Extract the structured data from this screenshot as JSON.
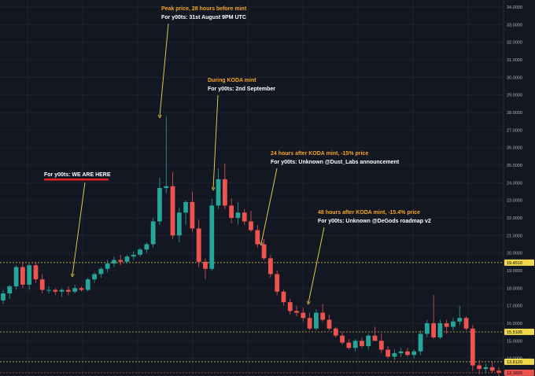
{
  "chart_data": {
    "type": "candlestick",
    "title": "",
    "xlabel": "",
    "ylabel": "",
    "ylim": [
      13.0,
      34.4
    ],
    "grid": true,
    "y_ticks": [
      "34.0000",
      "33.0000",
      "32.0000",
      "31.0000",
      "30.0000",
      "29.0000",
      "28.0000",
      "27.0000",
      "26.0000",
      "25.0000",
      "24.0000",
      "23.0000",
      "22.0000",
      "21.0000",
      "20.0000",
      "19.0000",
      "18.0000",
      "17.0000",
      "16.0000",
      "15.0000",
      "14.0000",
      "13.0000"
    ],
    "price_lines": [
      {
        "label": "19.4510",
        "value": 19.451,
        "color": "#f0d94b"
      },
      {
        "label": "15.5105",
        "value": 15.5105,
        "color": "#f0d94b"
      },
      {
        "label": "13.8120",
        "value": 13.812,
        "color": "#f0d94b"
      },
      {
        "label": "13.1820",
        "value": 13.182,
        "color": "#ef5350"
      }
    ],
    "up_color": "#26a69a",
    "down_color": "#ef5350",
    "candles": [
      {
        "o": 17.3,
        "h": 17.9,
        "l": 17.1,
        "c": 17.7
      },
      {
        "o": 17.7,
        "h": 18.2,
        "l": 17.4,
        "c": 18.1
      },
      {
        "o": 18.1,
        "h": 19.3,
        "l": 17.9,
        "c": 19.2
      },
      {
        "o": 19.2,
        "h": 19.5,
        "l": 18.0,
        "c": 18.2
      },
      {
        "o": 18.2,
        "h": 19.4,
        "l": 17.9,
        "c": 19.3
      },
      {
        "o": 19.3,
        "h": 19.5,
        "l": 18.3,
        "c": 18.5
      },
      {
        "o": 18.5,
        "h": 18.8,
        "l": 17.7,
        "c": 17.9
      },
      {
        "o": 17.9,
        "h": 18.1,
        "l": 17.7,
        "c": 17.9
      },
      {
        "o": 17.9,
        "h": 18.0,
        "l": 17.6,
        "c": 17.8
      },
      {
        "o": 17.8,
        "h": 18.0,
        "l": 17.5,
        "c": 17.9
      },
      {
        "o": 17.9,
        "h": 18.1,
        "l": 17.6,
        "c": 17.8
      },
      {
        "o": 17.8,
        "h": 18.2,
        "l": 17.7,
        "c": 18.0
      },
      {
        "o": 18.0,
        "h": 18.1,
        "l": 17.8,
        "c": 17.9
      },
      {
        "o": 17.9,
        "h": 18.6,
        "l": 17.8,
        "c": 18.5
      },
      {
        "o": 18.5,
        "h": 18.9,
        "l": 18.3,
        "c": 18.8
      },
      {
        "o": 18.8,
        "h": 19.2,
        "l": 18.6,
        "c": 19.1
      },
      {
        "o": 19.1,
        "h": 19.6,
        "l": 18.9,
        "c": 19.4
      },
      {
        "o": 19.4,
        "h": 19.8,
        "l": 19.2,
        "c": 19.6
      },
      {
        "o": 19.6,
        "h": 19.9,
        "l": 19.3,
        "c": 19.5
      },
      {
        "o": 19.5,
        "h": 19.9,
        "l": 19.4,
        "c": 19.8
      },
      {
        "o": 19.8,
        "h": 20.1,
        "l": 19.6,
        "c": 19.9
      },
      {
        "o": 19.9,
        "h": 20.3,
        "l": 19.8,
        "c": 20.2
      },
      {
        "o": 20.2,
        "h": 20.6,
        "l": 20.0,
        "c": 20.5
      },
      {
        "o": 20.5,
        "h": 22.0,
        "l": 20.3,
        "c": 21.8
      },
      {
        "o": 21.8,
        "h": 24.3,
        "l": 21.6,
        "c": 23.7
      },
      {
        "o": 23.7,
        "h": 27.8,
        "l": 23.4,
        "c": 23.8
      },
      {
        "o": 23.8,
        "h": 24.6,
        "l": 20.8,
        "c": 21.0
      },
      {
        "o": 21.0,
        "h": 22.6,
        "l": 20.6,
        "c": 22.3
      },
      {
        "o": 22.3,
        "h": 23.0,
        "l": 21.6,
        "c": 22.9
      },
      {
        "o": 22.9,
        "h": 23.5,
        "l": 21.2,
        "c": 21.4
      },
      {
        "o": 21.4,
        "h": 21.9,
        "l": 19.2,
        "c": 19.5
      },
      {
        "o": 19.5,
        "h": 19.7,
        "l": 18.5,
        "c": 19.1
      },
      {
        "o": 19.1,
        "h": 23.1,
        "l": 19.0,
        "c": 22.7
      },
      {
        "o": 22.7,
        "h": 24.8,
        "l": 22.5,
        "c": 24.2
      },
      {
        "o": 24.2,
        "h": 25.1,
        "l": 22.5,
        "c": 22.7
      },
      {
        "o": 22.7,
        "h": 23.1,
        "l": 21.7,
        "c": 22.0
      },
      {
        "o": 22.0,
        "h": 22.9,
        "l": 21.6,
        "c": 22.3
      },
      {
        "o": 22.3,
        "h": 22.5,
        "l": 21.6,
        "c": 21.8
      },
      {
        "o": 21.8,
        "h": 22.4,
        "l": 21.2,
        "c": 21.3
      },
      {
        "o": 21.3,
        "h": 21.6,
        "l": 20.3,
        "c": 20.5
      },
      {
        "o": 20.5,
        "h": 20.8,
        "l": 19.6,
        "c": 19.7
      },
      {
        "o": 19.7,
        "h": 19.9,
        "l": 18.6,
        "c": 18.8
      },
      {
        "o": 18.8,
        "h": 19.0,
        "l": 17.6,
        "c": 17.8
      },
      {
        "o": 17.8,
        "h": 17.9,
        "l": 17.0,
        "c": 17.2
      },
      {
        "o": 17.2,
        "h": 17.4,
        "l": 16.5,
        "c": 16.7
      },
      {
        "o": 16.7,
        "h": 17.0,
        "l": 16.4,
        "c": 16.6
      },
      {
        "o": 16.6,
        "h": 16.9,
        "l": 16.1,
        "c": 16.3
      },
      {
        "o": 16.3,
        "h": 16.6,
        "l": 15.6,
        "c": 15.7
      },
      {
        "o": 15.7,
        "h": 16.8,
        "l": 15.6,
        "c": 16.6
      },
      {
        "o": 16.6,
        "h": 17.1,
        "l": 16.1,
        "c": 16.2
      },
      {
        "o": 16.2,
        "h": 16.5,
        "l": 15.6,
        "c": 15.7
      },
      {
        "o": 15.7,
        "h": 15.8,
        "l": 15.2,
        "c": 15.3
      },
      {
        "o": 15.3,
        "h": 15.5,
        "l": 14.8,
        "c": 14.9
      },
      {
        "o": 14.9,
        "h": 15.1,
        "l": 14.5,
        "c": 14.6
      },
      {
        "o": 14.6,
        "h": 15.1,
        "l": 14.4,
        "c": 15.0
      },
      {
        "o": 15.0,
        "h": 15.2,
        "l": 14.6,
        "c": 14.7
      },
      {
        "o": 14.7,
        "h": 15.4,
        "l": 14.5,
        "c": 15.3
      },
      {
        "o": 15.3,
        "h": 15.8,
        "l": 15.1,
        "c": 15.0
      },
      {
        "o": 15.0,
        "h": 15.4,
        "l": 14.3,
        "c": 14.5
      },
      {
        "o": 14.5,
        "h": 14.7,
        "l": 14.0,
        "c": 14.1
      },
      {
        "o": 14.1,
        "h": 14.5,
        "l": 13.9,
        "c": 14.3
      },
      {
        "o": 14.3,
        "h": 14.6,
        "l": 14.1,
        "c": 14.4
      },
      {
        "o": 14.4,
        "h": 14.6,
        "l": 14.1,
        "c": 14.2
      },
      {
        "o": 14.2,
        "h": 14.5,
        "l": 14.0,
        "c": 14.4
      },
      {
        "o": 14.4,
        "h": 15.6,
        "l": 14.2,
        "c": 15.4
      },
      {
        "o": 15.4,
        "h": 16.2,
        "l": 15.2,
        "c": 16.0
      },
      {
        "o": 16.0,
        "h": 17.6,
        "l": 15.1,
        "c": 15.2
      },
      {
        "o": 15.2,
        "h": 16.2,
        "l": 15.1,
        "c": 16.0
      },
      {
        "o": 16.0,
        "h": 16.2,
        "l": 15.4,
        "c": 15.8
      },
      {
        "o": 15.8,
        "h": 16.3,
        "l": 15.6,
        "c": 16.1
      },
      {
        "o": 16.1,
        "h": 17.0,
        "l": 15.9,
        "c": 16.3
      },
      {
        "o": 16.3,
        "h": 16.4,
        "l": 15.6,
        "c": 15.7
      },
      {
        "o": 15.7,
        "h": 15.9,
        "l": 13.3,
        "c": 13.6
      },
      {
        "o": 13.6,
        "h": 13.9,
        "l": 13.1,
        "c": 13.4
      },
      {
        "o": 13.4,
        "h": 13.7,
        "l": 13.2,
        "c": 13.5
      },
      {
        "o": 13.5,
        "h": 13.8,
        "l": 13.2,
        "c": 13.3
      },
      {
        "o": 13.3,
        "h": 13.5,
        "l": 13.0,
        "c": 13.2
      }
    ],
    "annotations": [
      {
        "title": "Peak price, 28 hours before mint",
        "subtitle": "For y00ts: 31st August 9PM UTC"
      },
      {
        "title": "During KODA mint",
        "subtitle": "For y00ts: 2nd September"
      },
      {
        "title": "24 hours after KODA mint, -15% price",
        "subtitle": "For y00ts: Unknown @Dust_Labs announcement"
      },
      {
        "title": "48 hours after KODA mint, -15.4% price",
        "subtitle": "For y00ts: Unknown @DeGods roadmap v2"
      },
      {
        "title": "",
        "subtitle": "For y00ts: WE ARE HERE"
      }
    ]
  }
}
